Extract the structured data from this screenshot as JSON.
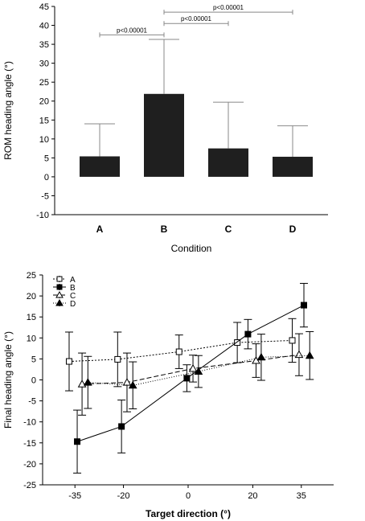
{
  "chart_data": [
    {
      "type": "bar",
      "xlabel": "Condition",
      "ylabel": "ROM heading angle (°)",
      "categories": [
        "A",
        "B",
        "C",
        "D"
      ],
      "values": [
        5.4,
        21.9,
        7.5,
        5.3
      ],
      "error_up": [
        8.6,
        14.4,
        12.2,
        8.2
      ],
      "ylim": [
        -10,
        45
      ],
      "yticks": [
        -10,
        -5,
        0,
        5,
        10,
        15,
        20,
        25,
        30,
        35,
        40,
        45
      ],
      "bar_color": "#1f1f1f",
      "significance": [
        {
          "from": "A",
          "to": "B",
          "y": 37.5,
          "label": "p<0.00001"
        },
        {
          "from": "B",
          "to": "C",
          "y": 40.5,
          "label": "p<0.00001"
        },
        {
          "from": "B",
          "to": "D",
          "y": 43.5,
          "label": "p<0.00001"
        }
      ]
    },
    {
      "type": "line",
      "xlabel": "Target direction (°)",
      "ylabel": "Final heading angle (°)",
      "xticks": [
        -35,
        -20,
        0,
        20,
        35
      ],
      "ylim": [
        -25,
        25
      ],
      "yticks": [
        -25,
        -20,
        -15,
        -10,
        -5,
        0,
        5,
        10,
        15,
        20,
        25
      ],
      "legend_position": "top-left",
      "series": [
        {
          "name": "A",
          "marker": "square-open",
          "dash": "2,2",
          "x": [
            -36.8,
            -21.8,
            -2.8,
            15.2,
            32.2
          ],
          "y": [
            4.4,
            4.9,
            6.7,
            8.9,
            9.4
          ],
          "err": [
            7.0,
            6.5,
            4.0,
            4.8,
            5.2
          ]
        },
        {
          "name": "B",
          "marker": "square-filled",
          "dash": "",
          "x": [
            -34.3,
            -20.6,
            -0.4,
            18.5,
            35.8
          ],
          "y": [
            -14.7,
            -11.1,
            0.4,
            10.9,
            17.8
          ],
          "err": [
            7.5,
            6.3,
            3.2,
            3.5,
            5.2
          ]
        },
        {
          "name": "C",
          "marker": "triangle-open",
          "dash": "6,3",
          "x": [
            -32.8,
            -18.9,
            1.5,
            21.0,
            34.3
          ],
          "y": [
            -1.0,
            -0.6,
            2.7,
            4.6,
            6.0
          ],
          "err": [
            7.4,
            7.0,
            3.2,
            4.0,
            5.0
          ]
        },
        {
          "name": "D",
          "marker": "triangle-filled",
          "dash": "1,2",
          "x": [
            -31.0,
            -17.1,
            3.2,
            22.6,
            37.6
          ],
          "y": [
            -0.6,
            -1.3,
            2.0,
            5.4,
            5.8
          ],
          "err": [
            6.2,
            5.6,
            3.8,
            5.5,
            5.7
          ]
        }
      ]
    }
  ]
}
